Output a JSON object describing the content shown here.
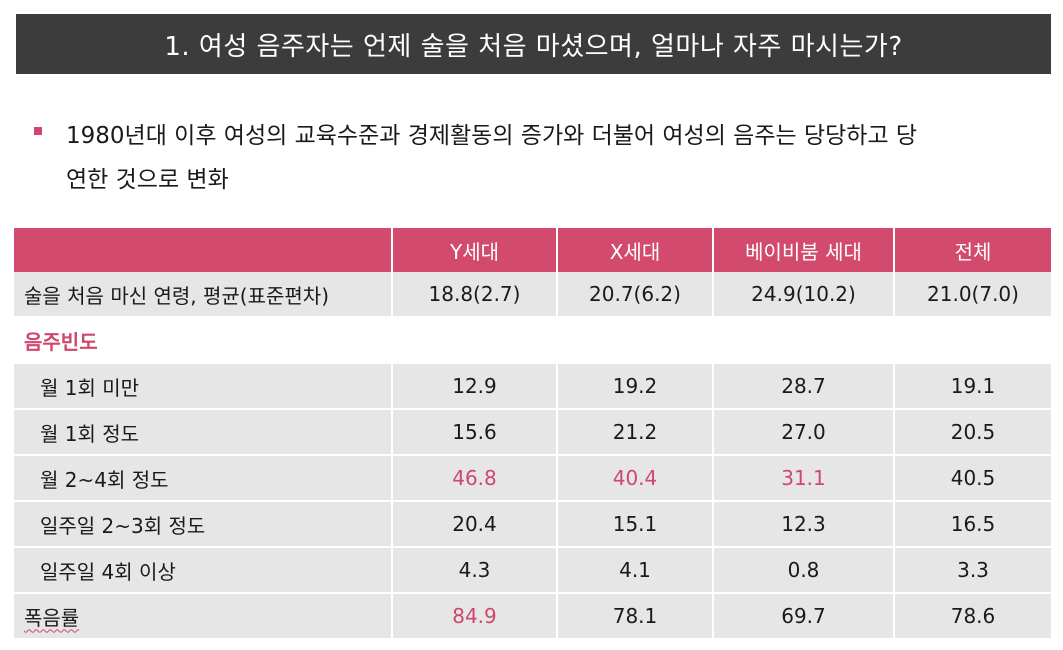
{
  "title": "1. 여성 음주자는 언제 술을 처음 마셨으며, 얼마나 자주 마시는가?",
  "bullet": {
    "line1": "1980년대 이후 여성의 교육수준과 경제활동의 증가와 더불어 여성의 음주는 당당하고 당",
    "line2": "연한 것으로 변화"
  },
  "accent_color": "#d0466c",
  "table": {
    "headers": [
      "",
      "Y세대",
      "X세대",
      "베이비붐 세대",
      "전체"
    ],
    "first_age": {
      "label": "술을 처음 마신 연령, 평균(표준편차)",
      "values": [
        "18.8(2.7)",
        "20.7(6.2)",
        "24.9(10.2)",
        "21.0(7.0)"
      ]
    },
    "section_label": "음주빈도",
    "freq_rows": [
      {
        "label": "월 1회 미만",
        "values": [
          "12.9",
          "19.2",
          "28.7",
          "19.1"
        ]
      },
      {
        "label": "월 1회 정도",
        "values": [
          "15.6",
          "21.2",
          "27.0",
          "20.5"
        ]
      },
      {
        "label": "월 2~4회 정도",
        "values": [
          "46.8",
          "40.4",
          "31.1",
          "40.5"
        ]
      },
      {
        "label": "일주일 2~3회 정도",
        "values": [
          "20.4",
          "15.1",
          "12.3",
          "16.5"
        ]
      },
      {
        "label": "일주일 4회 이상",
        "values": [
          "4.3",
          "4.1",
          "0.8",
          "3.3"
        ]
      }
    ],
    "binge": {
      "label": "폭음률",
      "values": [
        "84.9",
        "78.1",
        "69.7",
        "78.6"
      ]
    }
  }
}
